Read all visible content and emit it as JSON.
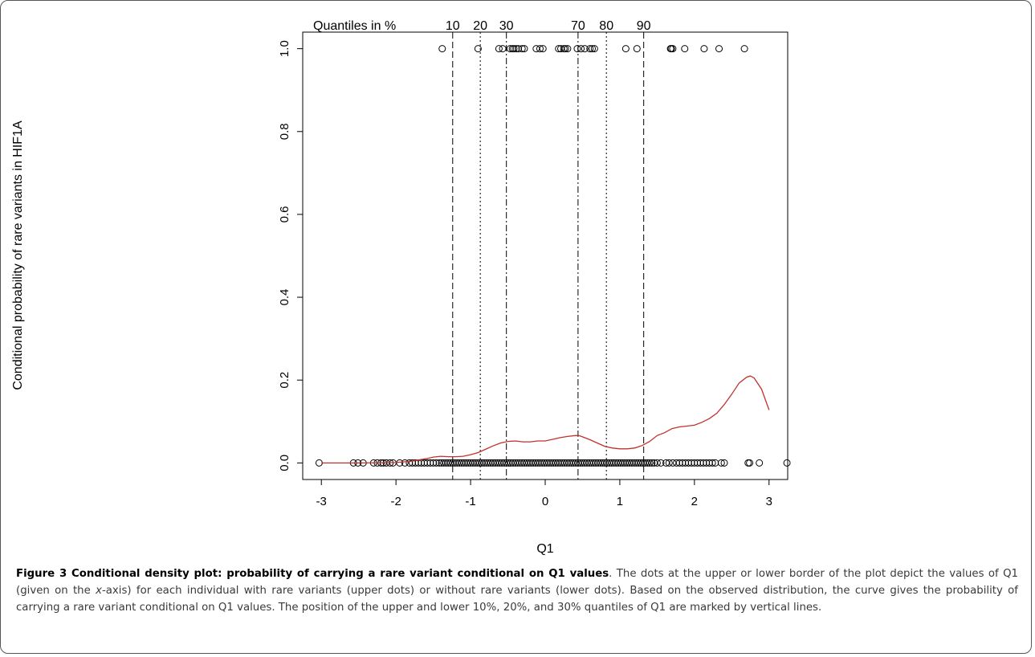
{
  "chart_data": {
    "type": "scatter",
    "xlabel": "Q1",
    "ylabel": "Conditional probability of rare variants in HIF1A",
    "xlim": [
      -3.25,
      3.25
    ],
    "ylim": [
      -0.04,
      1.04
    ],
    "x_ticks": [
      "-3",
      "-2",
      "-1",
      "0",
      "1",
      "2",
      "3"
    ],
    "y_ticks": [
      "0.0",
      "0.2",
      "0.4",
      "0.6",
      "0.8",
      "1.0"
    ],
    "grid": false,
    "quantile_header": "Quantiles in %",
    "quantiles": [
      {
        "label": "10",
        "x": -1.24,
        "style": "dashed"
      },
      {
        "label": "20",
        "x": -0.87,
        "style": "dotted"
      },
      {
        "label": "30",
        "x": -0.52,
        "style": "dashdot"
      },
      {
        "label": "70",
        "x": 0.44,
        "style": "dashdot"
      },
      {
        "label": "80",
        "x": 0.82,
        "style": "dotted"
      },
      {
        "label": "90",
        "x": 1.32,
        "style": "dashed"
      }
    ],
    "series": [
      {
        "name": "",
        "kind": "points",
        "y": 1.0,
        "x": [
          -1.38,
          -0.9,
          -0.62,
          -0.57,
          -0.47,
          -0.44,
          -0.42,
          -0.39,
          -0.36,
          -0.31,
          -0.28,
          -0.12,
          -0.07,
          -0.03,
          0.18,
          0.21,
          0.25,
          0.27,
          0.3,
          0.43,
          0.48,
          0.53,
          0.6,
          0.63,
          0.66,
          1.08,
          1.23,
          1.68,
          1.69,
          1.71,
          1.87,
          2.13,
          2.33,
          2.67
        ]
      },
      {
        "name": "",
        "kind": "points",
        "y": 0.0,
        "x": [
          -3.03,
          -2.57,
          -2.51,
          -2.44,
          -2.3,
          -2.25,
          -2.2,
          -2.17,
          -2.13,
          -2.08,
          -2.04,
          -1.95,
          -1.88,
          -1.82,
          -1.78,
          -1.74,
          -1.7,
          -1.66,
          -1.62,
          -1.58,
          -1.54,
          -1.5,
          -1.46,
          -1.42,
          -1.39,
          -1.36,
          -1.33,
          -1.3,
          -1.27,
          -1.24,
          -1.21,
          -1.18,
          -1.15,
          -1.12,
          -1.09,
          -1.06,
          -1.03,
          -1.0,
          -0.97,
          -0.94,
          -0.91,
          -0.88,
          -0.85,
          -0.82,
          -0.79,
          -0.76,
          -0.73,
          -0.7,
          -0.67,
          -0.64,
          -0.61,
          -0.58,
          -0.55,
          -0.52,
          -0.49,
          -0.46,
          -0.43,
          -0.4,
          -0.37,
          -0.34,
          -0.31,
          -0.28,
          -0.25,
          -0.22,
          -0.19,
          -0.16,
          -0.13,
          -0.1,
          -0.07,
          -0.04,
          -0.01,
          0.02,
          0.05,
          0.08,
          0.11,
          0.14,
          0.17,
          0.2,
          0.23,
          0.26,
          0.29,
          0.32,
          0.35,
          0.38,
          0.41,
          0.44,
          0.47,
          0.5,
          0.53,
          0.56,
          0.59,
          0.62,
          0.65,
          0.68,
          0.71,
          0.74,
          0.77,
          0.8,
          0.83,
          0.86,
          0.89,
          0.92,
          0.95,
          0.98,
          1.01,
          1.04,
          1.07,
          1.1,
          1.13,
          1.16,
          1.19,
          1.22,
          1.25,
          1.28,
          1.31,
          1.34,
          1.37,
          1.4,
          1.43,
          1.46,
          1.5,
          1.55,
          1.62,
          1.66,
          1.71,
          1.76,
          1.8,
          1.84,
          1.88,
          1.92,
          1.96,
          2.0,
          2.04,
          2.08,
          2.12,
          2.16,
          2.2,
          2.24,
          2.28,
          2.36,
          2.4,
          2.72,
          2.74,
          2.87,
          3.24
        ]
      },
      {
        "name": "",
        "kind": "curve",
        "color": "#c0322c",
        "x": [
          -3.0,
          -2.5,
          -2.0,
          -1.8,
          -1.6,
          -1.5,
          -1.4,
          -1.3,
          -1.2,
          -1.1,
          -1.0,
          -0.9,
          -0.8,
          -0.7,
          -0.6,
          -0.5,
          -0.4,
          -0.3,
          -0.2,
          -0.1,
          0.0,
          0.1,
          0.2,
          0.3,
          0.4,
          0.45,
          0.5,
          0.6,
          0.7,
          0.8,
          0.9,
          1.0,
          1.1,
          1.2,
          1.3,
          1.4,
          1.5,
          1.6,
          1.7,
          1.8,
          1.9,
          2.0,
          2.1,
          2.2,
          2.3,
          2.4,
          2.5,
          2.6,
          2.7,
          2.75,
          2.8,
          2.9,
          3.0
        ],
        "y": [
          0.0,
          0.0,
          0.001,
          0.004,
          0.01,
          0.014,
          0.016,
          0.015,
          0.015,
          0.016,
          0.02,
          0.025,
          0.033,
          0.041,
          0.048,
          0.052,
          0.053,
          0.051,
          0.051,
          0.053,
          0.053,
          0.057,
          0.061,
          0.064,
          0.066,
          0.066,
          0.063,
          0.056,
          0.048,
          0.04,
          0.036,
          0.034,
          0.034,
          0.036,
          0.042,
          0.052,
          0.066,
          0.073,
          0.083,
          0.087,
          0.089,
          0.091,
          0.098,
          0.107,
          0.12,
          0.141,
          0.166,
          0.193,
          0.207,
          0.21,
          0.205,
          0.178,
          0.128
        ]
      }
    ]
  },
  "caption": {
    "title": "Figure 3 Conditional density plot: probability of carrying a rare variant conditional on Q1 values",
    "part1": ". The dots at the upper or lower border of the plot depict the values of Q1 (given on the ",
    "axis": "x",
    "part2": "-axis) for each individual with rare variants (upper dots) or without rare variants (lower dots). Based on the observed distribution, the curve gives the probability of carrying a rare variant conditional on Q1 values. The position of the upper and lower 10%, 20%, and 30% quantiles of Q1 are marked by vertical lines."
  }
}
